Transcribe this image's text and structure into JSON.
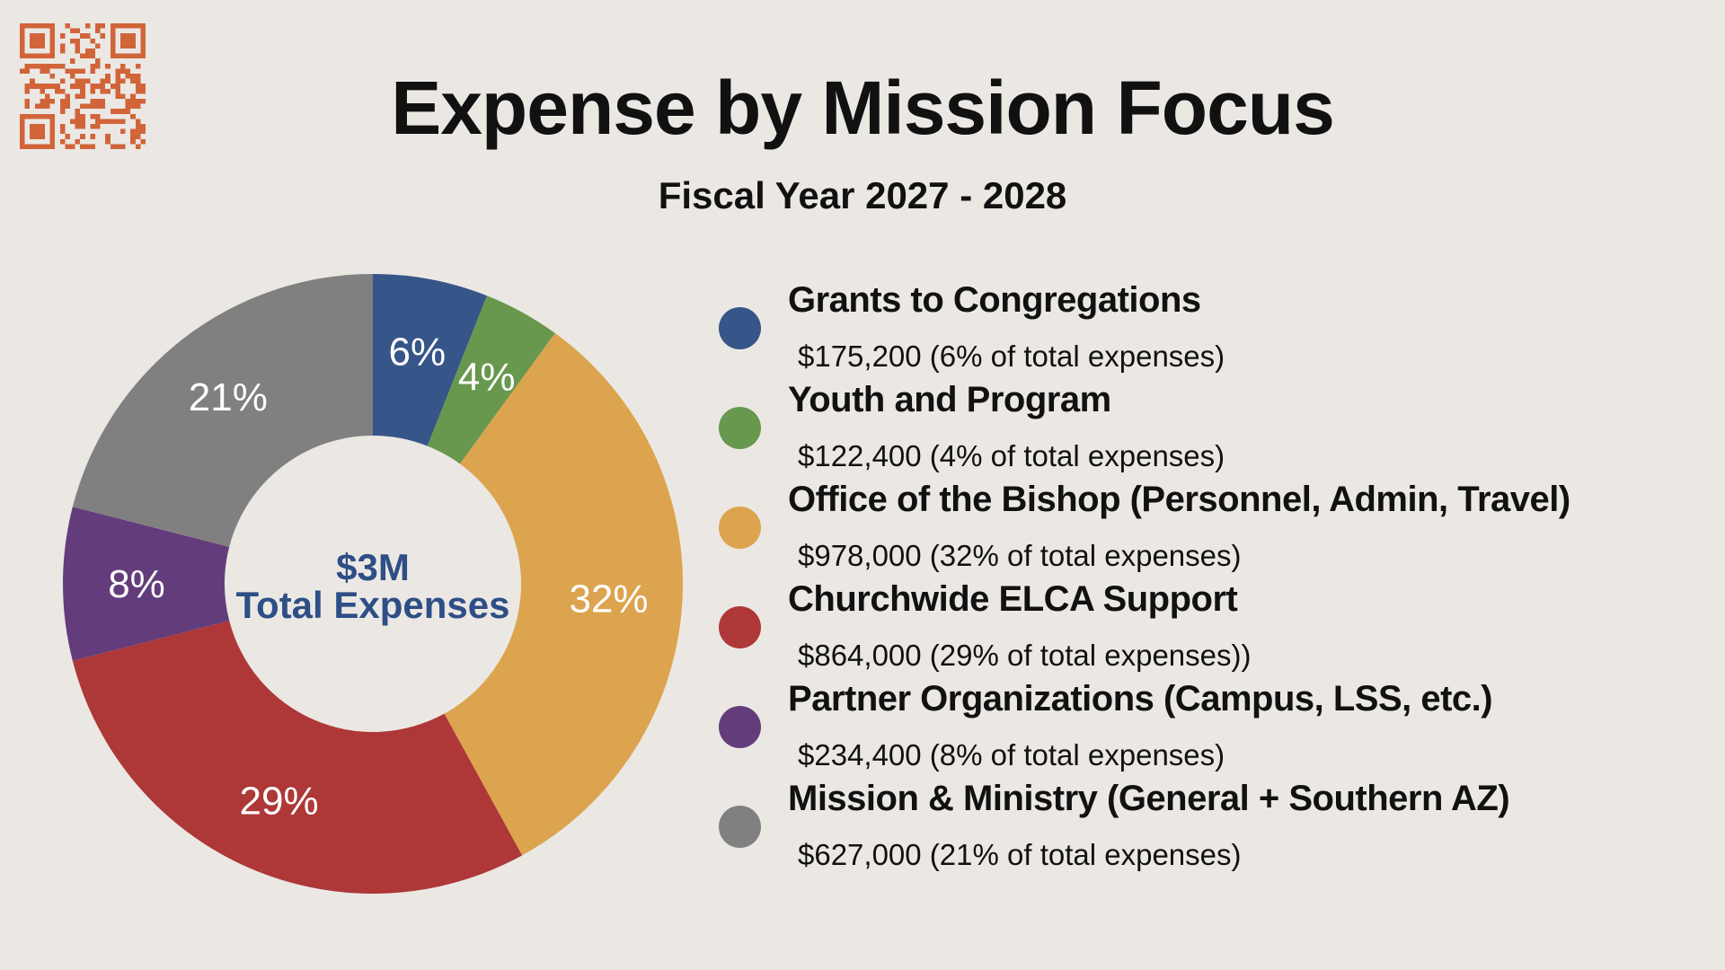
{
  "title": "Expense by Mission Focus",
  "subtitle": "Fiscal Year 2027 - 2028",
  "qr_code": {
    "icon": "qr-code-icon",
    "color": "#d2643a"
  },
  "center": {
    "amount": "$3M",
    "label": "Total Expenses"
  },
  "chart_data": {
    "type": "pie",
    "donut": true,
    "title": "Expense by Mission Focus",
    "subtitle": "Fiscal Year 2027 - 2028",
    "series": [
      {
        "name": "Grants to Congregations",
        "value": 6,
        "amount": 175200,
        "label": "6%",
        "color": "#365588"
      },
      {
        "name": "Youth and Program",
        "value": 4,
        "amount": 122400,
        "label": "4%",
        "color": "#67984e"
      },
      {
        "name": "Office of the Bishop (Personnel, Admin, Travel)",
        "value": 32,
        "amount": 978000,
        "label": "32%",
        "color": "#dca44e"
      },
      {
        "name": "Churchwide ELCA Support",
        "value": 29,
        "amount": 864000,
        "label": "29%",
        "color": "#ae3838"
      },
      {
        "name": "Partner Organizations (Campus, LSS, etc.)",
        "value": 8,
        "amount": 234400,
        "label": "8%",
        "color": "#633d7b"
      },
      {
        "name": "Mission & Ministry (General + Southern AZ)",
        "value": 21,
        "amount": 627000,
        "label": "21%",
        "color": "#808080"
      }
    ]
  },
  "legend": [
    {
      "name": "Grants to Congregations",
      "detail": "$175,200 (6% of total expenses)"
    },
    {
      "name": "Youth and Program",
      "detail": "$122,400 (4% of total expenses)"
    },
    {
      "name": "Office of the Bishop (Personnel, Admin, Travel)",
      "detail": "$978,000 (32% of total expenses)"
    },
    {
      "name": "Churchwide ELCA Support",
      "detail": "$864,000 (29% of total expenses))"
    },
    {
      "name": "Partner Organizations (Campus, LSS, etc.)",
      "detail": "$234,400 (8% of total expenses)"
    },
    {
      "name": "Mission & Ministry (General + Southern AZ)",
      "detail": "$627,000 (21% of total expenses)"
    }
  ]
}
